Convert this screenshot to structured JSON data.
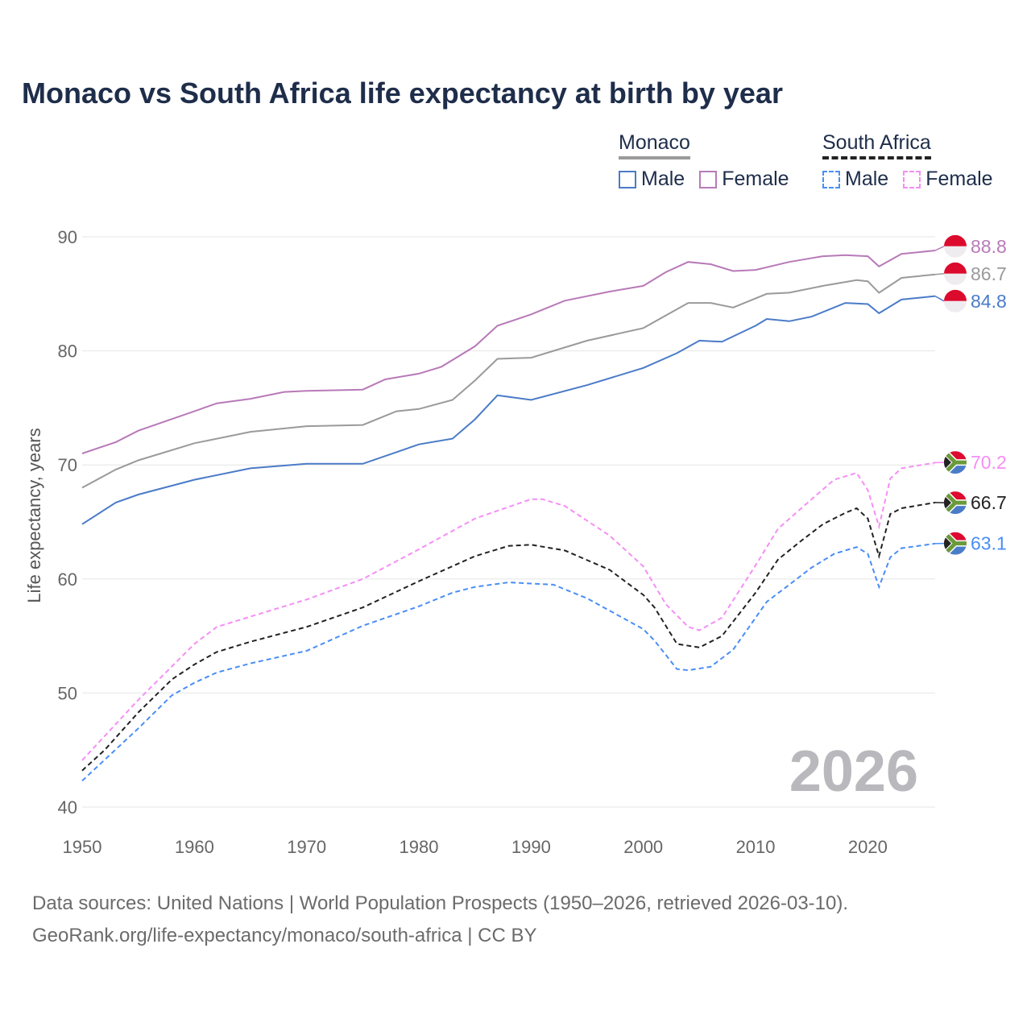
{
  "chart_data": {
    "type": "line",
    "title": "Monaco vs South Africa life expectancy at birth by year",
    "xlabel": "",
    "ylabel": "Life expectancy, years",
    "xlim": [
      1950,
      2026
    ],
    "ylim": [
      40,
      90
    ],
    "xticks": [
      1950,
      1960,
      1970,
      1980,
      1990,
      2000,
      2010,
      2020
    ],
    "yticks": [
      40,
      50,
      60,
      70,
      80,
      90
    ],
    "grid": true,
    "year_label": "2026",
    "legend": {
      "groups": [
        {
          "name": "Monaco",
          "items": [
            "Male",
            "Female"
          ]
        },
        {
          "name": "South Africa",
          "items": [
            "Male",
            "Female"
          ]
        }
      ],
      "placement": "top-right"
    },
    "series": [
      {
        "key": "mc-female",
        "country": "Monaco",
        "name": "Female",
        "color": "#b87ab8",
        "dashed": false,
        "flag": "monaco",
        "end_label": "88.8",
        "x": [
          1950,
          1953,
          1955,
          1960,
          1962,
          1965,
          1968,
          1970,
          1975,
          1977,
          1980,
          1982,
          1985,
          1987,
          1990,
          1993,
          1997,
          2000,
          2002,
          2004,
          2006,
          2008,
          2010,
          2013,
          2016,
          2018,
          2020,
          2021,
          2023,
          2026
        ],
        "y": [
          71.0,
          72.0,
          73.0,
          74.7,
          75.4,
          75.8,
          76.4,
          76.5,
          76.6,
          77.5,
          78.0,
          78.6,
          80.4,
          82.2,
          83.2,
          84.4,
          85.2,
          85.7,
          86.9,
          87.8,
          87.6,
          87.0,
          87.1,
          87.8,
          88.3,
          88.4,
          88.3,
          87.4,
          88.5,
          88.8
        ]
      },
      {
        "key": "mc-total",
        "country": "Monaco",
        "name": "Total",
        "color": "#9a9a9a",
        "dashed": false,
        "flag": "monaco",
        "end_label": "86.7",
        "x": [
          1950,
          1953,
          1955,
          1960,
          1965,
          1970,
          1975,
          1978,
          1980,
          1983,
          1985,
          1987,
          1990,
          1995,
          2000,
          2004,
          2006,
          2008,
          2011,
          2013,
          2016,
          2019,
          2020,
          2021,
          2023,
          2026
        ],
        "y": [
          68.0,
          69.6,
          70.4,
          71.9,
          72.9,
          73.4,
          73.5,
          74.7,
          74.9,
          75.7,
          77.4,
          79.3,
          79.4,
          80.9,
          82.0,
          84.2,
          84.2,
          83.8,
          85.0,
          85.1,
          85.7,
          86.2,
          86.1,
          85.1,
          86.4,
          86.7
        ]
      },
      {
        "key": "mc-male",
        "country": "Monaco",
        "name": "Male",
        "color": "#4a7bc8",
        "dashed": false,
        "flag": "monaco",
        "end_label": "84.8",
        "x": [
          1950,
          1953,
          1955,
          1960,
          1965,
          1970,
          1975,
          1980,
          1983,
          1985,
          1987,
          1990,
          1995,
          2000,
          2003,
          2005,
          2007,
          2010,
          2011,
          2013,
          2015,
          2018,
          2020,
          2021,
          2023,
          2026
        ],
        "y": [
          64.8,
          66.7,
          67.4,
          68.7,
          69.7,
          70.1,
          70.1,
          71.8,
          72.3,
          74.0,
          76.1,
          75.7,
          77.0,
          78.5,
          79.8,
          80.9,
          80.8,
          82.2,
          82.8,
          82.6,
          83.0,
          84.2,
          84.1,
          83.3,
          84.5,
          84.8
        ]
      },
      {
        "key": "sa-female",
        "country": "South Africa",
        "name": "Female",
        "color": "#f58ef5",
        "dashed": true,
        "flag": "south-africa",
        "end_label": "70.2",
        "x": [
          1950,
          1955,
          1960,
          1962,
          1965,
          1970,
          1975,
          1980,
          1985,
          1990,
          1991,
          1993,
          1997,
          2000,
          2002,
          2004,
          2005,
          2007,
          2010,
          2012,
          2015,
          2017,
          2019,
          2020,
          2021,
          2022,
          2023,
          2026
        ],
        "y": [
          44.1,
          49.4,
          54.3,
          55.8,
          56.7,
          58.2,
          60.0,
          62.6,
          65.3,
          67.0,
          67.0,
          66.4,
          63.8,
          61.1,
          57.8,
          55.8,
          55.5,
          56.6,
          61.2,
          64.4,
          67.0,
          68.7,
          69.3,
          67.8,
          64.6,
          68.8,
          69.7,
          70.2
        ]
      },
      {
        "key": "sa-total",
        "country": "South Africa",
        "name": "Total",
        "color": "#222222",
        "dashed": true,
        "flag": "south-africa",
        "end_label": "66.7",
        "x": [
          1950,
          1952,
          1955,
          1958,
          1960,
          1962,
          1965,
          1970,
          1975,
          1980,
          1985,
          1988,
          1990,
          1993,
          1997,
          2000,
          2001,
          2003,
          2005,
          2007,
          2010,
          2012,
          2014,
          2016,
          2018,
          2019,
          2020,
          2021,
          2022,
          2023,
          2026
        ],
        "y": [
          43.2,
          45.0,
          48.3,
          51.2,
          52.5,
          53.6,
          54.5,
          55.8,
          57.5,
          59.8,
          62.0,
          62.9,
          63.0,
          62.5,
          60.8,
          58.6,
          57.5,
          54.3,
          54.0,
          55.0,
          58.8,
          61.7,
          63.3,
          64.8,
          65.8,
          66.2,
          65.3,
          62.0,
          65.7,
          66.2,
          66.7
        ]
      },
      {
        "key": "sa-male",
        "country": "South Africa",
        "name": "Male",
        "color": "#4a8ef5",
        "dashed": true,
        "flag": "south-africa",
        "end_label": "63.1",
        "x": [
          1950,
          1955,
          1958,
          1960,
          1962,
          1965,
          1970,
          1975,
          1980,
          1983,
          1985,
          1988,
          1990,
          1992,
          1995,
          2000,
          2001,
          2003,
          2004,
          2006,
          2008,
          2011,
          2013,
          2015,
          2017,
          2019,
          2020,
          2021,
          2022,
          2023,
          2026
        ],
        "y": [
          42.3,
          46.9,
          49.8,
          50.9,
          51.8,
          52.6,
          53.7,
          55.9,
          57.6,
          58.8,
          59.3,
          59.7,
          59.6,
          59.5,
          58.3,
          55.6,
          54.6,
          52.1,
          52.0,
          52.3,
          53.8,
          58.0,
          59.5,
          61.0,
          62.2,
          62.8,
          62.2,
          59.3,
          61.9,
          62.7,
          63.1
        ]
      }
    ]
  },
  "legend": {
    "monaco": {
      "title": "Monaco",
      "male": "Male",
      "female": "Female",
      "male_color": "#4a7bc8",
      "female_color": "#b87ab8"
    },
    "south_africa": {
      "title": "South Africa",
      "male": "Male",
      "female": "Female",
      "male_color": "#4a8ef5",
      "female_color": "#f58ef5"
    }
  },
  "footer": {
    "line1": "Data sources: United Nations | World Population Prospects (1950–2026, retrieved 2026-03-10).",
    "line2": "GeoRank.org/life-expectancy/monaco/south-africa | CC BY"
  }
}
